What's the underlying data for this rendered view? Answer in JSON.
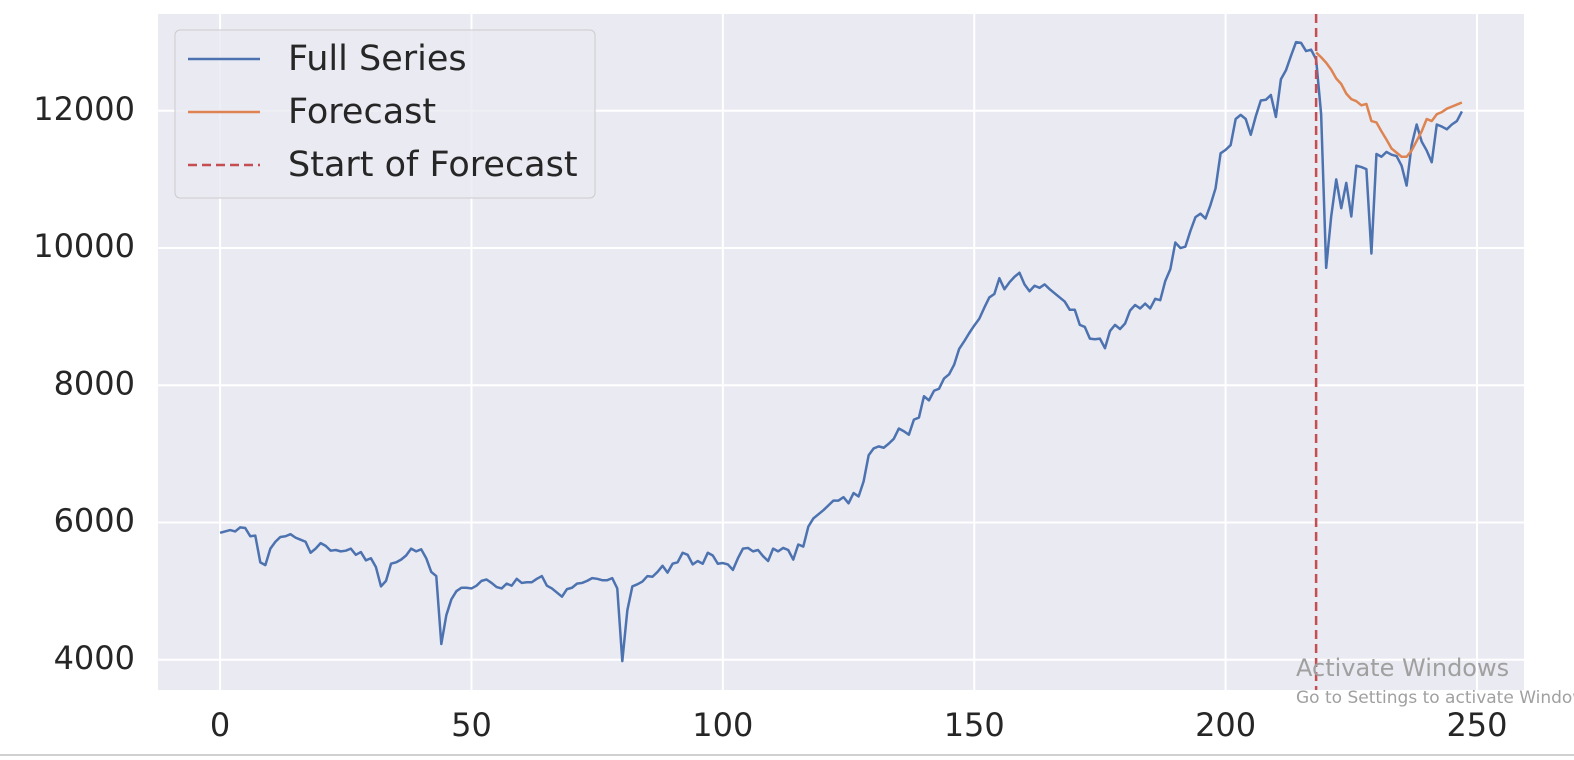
{
  "chart_data": {
    "type": "line",
    "series": [
      {
        "name": "Full Series",
        "color": "#4c72b0",
        "x": [
          0,
          1,
          2,
          3,
          4,
          5,
          6,
          7,
          8,
          9,
          10,
          11,
          12,
          13,
          14,
          15,
          16,
          17,
          18,
          19,
          20,
          21,
          22,
          23,
          24,
          25,
          26,
          27,
          28,
          29,
          30,
          31,
          32,
          33,
          34,
          35,
          36,
          37,
          38,
          39,
          40,
          41,
          42,
          43,
          44,
          45,
          46,
          47,
          48,
          49,
          50,
          51,
          52,
          53,
          54,
          55,
          56,
          57,
          58,
          59,
          60,
          61,
          62,
          63,
          64,
          65,
          66,
          67,
          68,
          69,
          70,
          71,
          72,
          73,
          74,
          75,
          76,
          77,
          78,
          79,
          80,
          81,
          82,
          83,
          84,
          85,
          86,
          87,
          88,
          89,
          90,
          91,
          92,
          93,
          94,
          95,
          96,
          97,
          98,
          99,
          100,
          101,
          102,
          103,
          104,
          105,
          106,
          107,
          108,
          109,
          110,
          111,
          112,
          113,
          114,
          115,
          116,
          117,
          118,
          119,
          120,
          121,
          122,
          123,
          124,
          125,
          126,
          127,
          128,
          129,
          130,
          131,
          132,
          133,
          134,
          135,
          136,
          137,
          138,
          139,
          140,
          141,
          142,
          143,
          144,
          145,
          146,
          147,
          148,
          149,
          150,
          151,
          152,
          153,
          154,
          155,
          156,
          157,
          158,
          159,
          160,
          161,
          162,
          163,
          164,
          165,
          166,
          167,
          168,
          169,
          170,
          171,
          172,
          173,
          174,
          175,
          176,
          177,
          178,
          179,
          180,
          181,
          182,
          183,
          184,
          185,
          186,
          187,
          188,
          189,
          190,
          191,
          192,
          193,
          194,
          195,
          196,
          197,
          198,
          199,
          200,
          201,
          202,
          203,
          204,
          205,
          206,
          207,
          208,
          209,
          210,
          211,
          212,
          213,
          214,
          215,
          216,
          217,
          218,
          219,
          220,
          221,
          222,
          223,
          224,
          225,
          226,
          227,
          228,
          229,
          230,
          231,
          232,
          233,
          234,
          235,
          236,
          237,
          238,
          239,
          240,
          241,
          242,
          243,
          244,
          245,
          246,
          247
        ],
        "values": [
          5850,
          5870,
          5890,
          5870,
          5930,
          5920,
          5800,
          5810,
          5420,
          5380,
          5620,
          5720,
          5790,
          5800,
          5830,
          5780,
          5750,
          5720,
          5560,
          5620,
          5700,
          5660,
          5590,
          5600,
          5580,
          5590,
          5620,
          5530,
          5570,
          5450,
          5480,
          5350,
          5070,
          5150,
          5400,
          5420,
          5460,
          5520,
          5620,
          5580,
          5610,
          5480,
          5280,
          5220,
          4230,
          4650,
          4880,
          5000,
          5050,
          5050,
          5040,
          5080,
          5150,
          5170,
          5120,
          5060,
          5040,
          5110,
          5080,
          5180,
          5120,
          5130,
          5130,
          5180,
          5220,
          5080,
          5040,
          4980,
          4920,
          5030,
          5050,
          5110,
          5120,
          5150,
          5190,
          5180,
          5160,
          5160,
          5190,
          5040,
          3980,
          4720,
          5070,
          5100,
          5140,
          5220,
          5210,
          5280,
          5370,
          5270,
          5400,
          5420,
          5560,
          5530,
          5390,
          5440,
          5400,
          5560,
          5520,
          5400,
          5410,
          5390,
          5310,
          5480,
          5620,
          5630,
          5580,
          5600,
          5510,
          5440,
          5620,
          5580,
          5630,
          5600,
          5460,
          5680,
          5650,
          5940,
          6060,
          6120,
          6180,
          6250,
          6320,
          6320,
          6370,
          6280,
          6430,
          6380,
          6600,
          6980,
          7080,
          7110,
          7090,
          7150,
          7220,
          7370,
          7330,
          7280,
          7500,
          7530,
          7840,
          7780,
          7920,
          7950,
          8100,
          8160,
          8300,
          8530,
          8640,
          8760,
          8870,
          8970,
          9130,
          9280,
          9330,
          9560,
          9400,
          9500,
          9580,
          9640,
          9470,
          9370,
          9450,
          9420,
          9470,
          9400,
          9340,
          9280,
          9220,
          9100,
          9100,
          8880,
          8850,
          8680,
          8670,
          8680,
          8540,
          8790,
          8880,
          8820,
          8900,
          9090,
          9170,
          9120,
          9190,
          9120,
          9260,
          9240,
          9520,
          9690,
          10080,
          10000,
          10020,
          10250,
          10450,
          10500,
          10430,
          10630,
          10870,
          11380,
          11430,
          11500,
          11880,
          11940,
          11880,
          11650,
          11920,
          12150,
          12160,
          12230,
          11910,
          12460,
          12590,
          12800,
          13000,
          12990,
          12870,
          12890,
          12750,
          11950,
          9710,
          10460,
          11000,
          10580,
          10950,
          10460,
          11200,
          11180,
          11150,
          9920,
          11370,
          11330,
          11400,
          11360,
          11340,
          11200,
          10910,
          11500,
          11800,
          11550,
          11420,
          11250,
          11800,
          11770,
          11730,
          11800,
          11850,
          11990
        ]
      },
      {
        "name": "Forecast",
        "color": "#dd8452",
        "x": [
          218,
          219,
          220,
          221,
          222,
          223,
          224,
          225,
          226,
          227,
          228,
          229,
          230,
          231,
          232,
          233,
          234,
          235,
          236,
          237,
          238,
          239,
          240,
          241,
          242,
          243,
          244,
          245,
          246,
          247
        ],
        "values": [
          12850,
          12780,
          12700,
          12600,
          12470,
          12390,
          12250,
          12170,
          12140,
          12080,
          12100,
          11850,
          11830,
          11700,
          11580,
          11450,
          11390,
          11330,
          11330,
          11420,
          11560,
          11700,
          11880,
          11850,
          11950,
          11980,
          12030,
          12060,
          12090,
          12120
        ]
      }
    ],
    "vline": {
      "x": 218,
      "label": "Start of Forecast",
      "color": "#c44e52"
    },
    "xlim": [
      -12.35,
      259.35
    ],
    "xticks": [
      0,
      50,
      100,
      150,
      200,
      250
    ],
    "ylim": [
      3560,
      13410
    ],
    "yticks": [
      4000,
      6000,
      8000,
      10000,
      12000
    ],
    "grid": true,
    "legend": "upper left"
  },
  "watermark": {
    "title": "Activate Windows",
    "subtitle": "Go to Settings to activate Windows"
  }
}
